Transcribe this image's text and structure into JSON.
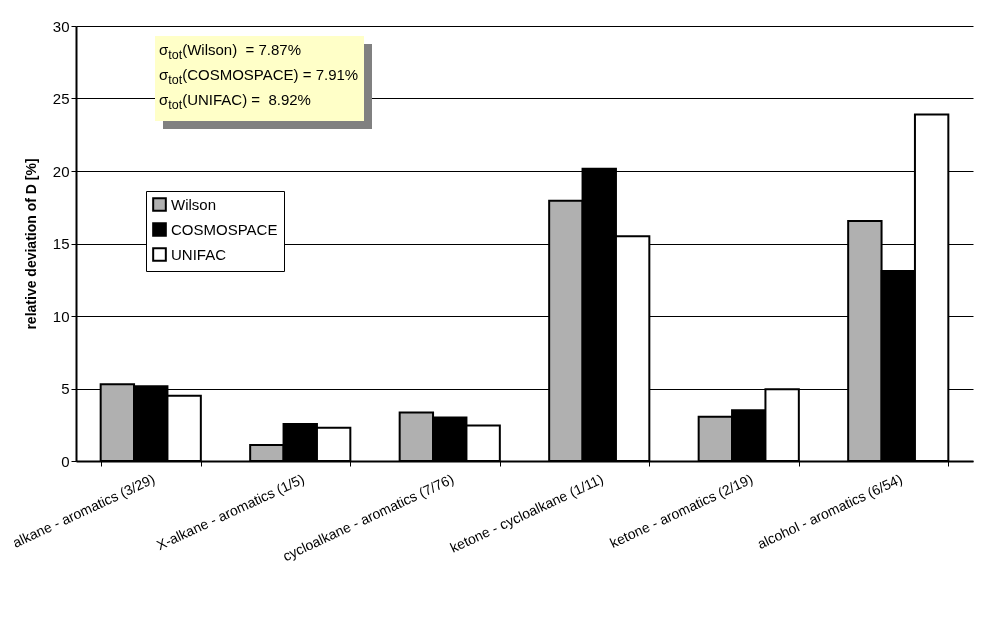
{
  "chart_data": {
    "type": "bar",
    "ylabel": "relative deviation of D [%]",
    "categories": [
      "alkane - aromatics (3/29)",
      "X-alkane - aromatics (1/5)",
      "cycloalkane - aromatics (7/76)",
      "ketone - cycloalkane (1/11)",
      "ketone - aromatics (2/19)",
      "alcohol - aromatics (6/54)"
    ],
    "series": [
      {
        "name": "Wilson",
        "color": "#b0b0b0",
        "values": [
          5.3,
          1.1,
          3.35,
          17.95,
          3.05,
          16.55
        ]
      },
      {
        "name": "COSMOSPACE",
        "color": "#000000",
        "values": [
          5.15,
          2.55,
          3.0,
          20.15,
          3.5,
          13.1
        ]
      },
      {
        "name": "UNIFAC",
        "color": "#ffffff",
        "values": [
          4.5,
          2.3,
          2.45,
          15.5,
          4.95,
          23.9
        ]
      }
    ],
    "ylim": [
      0,
      30
    ],
    "yticks": [
      0,
      5,
      10,
      15,
      20,
      25,
      30
    ],
    "grid": "y",
    "legend": "left",
    "annotations": [
      "σ$_{tot}$(Wilson)  = 7.87%\nσ$_{tot}$(COSMOSPACE) = 7.91%\nσ$_{tot}$(UNIFAC) =  8.92%"
    ]
  }
}
